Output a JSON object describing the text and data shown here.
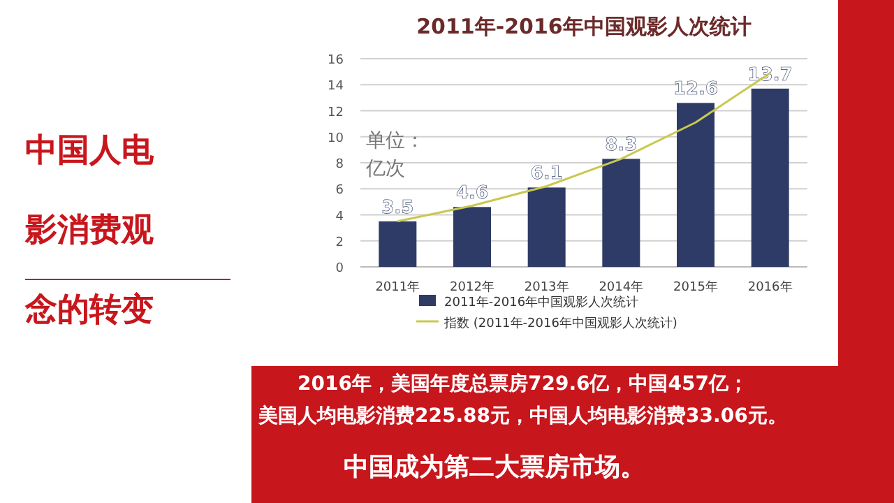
{
  "chart_data": {
    "type": "bar",
    "title": "2011年-2016年中国观影人次统计",
    "ylabel": "单位：亿次",
    "categories": [
      "2011年",
      "2012年",
      "2013年",
      "2014年",
      "2015年",
      "2016年"
    ],
    "series": [
      {
        "name": "2011年-2016年中国观影人次统计",
        "color": "#2e3b66",
        "values": [
          3.5,
          4.6,
          6.1,
          8.3,
          12.6,
          13.7
        ],
        "data_labels": true
      },
      {
        "name": "指数 (2011年-2016年中国观影人次统计)",
        "type": "line",
        "color": "#c9c84e",
        "values": [
          3.5,
          4.7,
          6.2,
          8.3,
          11.1,
          14.9
        ],
        "marker": "none"
      }
    ],
    "ylim": [
      0,
      16
    ],
    "yticks": [
      0,
      2,
      4,
      6,
      8,
      10,
      12,
      14,
      16
    ],
    "grid": "y",
    "legend": "bottom",
    "annotations": [
      "中国人电影消费观念的转变",
      "2016年，美国年度总票房729.6亿，中国457亿；美国人均电影消费225.88元，中国人均电影消费33.06元。",
      "中国成为第二大票房市场。"
    ]
  }
}
